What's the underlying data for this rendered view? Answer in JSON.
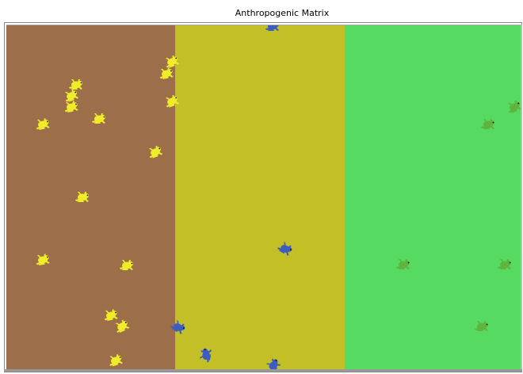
{
  "view": {
    "title": "Anthropogenic Matrix"
  },
  "patches": [
    {
      "name": "brown-habitat",
      "color": "#9c6e4a"
    },
    {
      "name": "olive-matrix",
      "color": "#c3bf27"
    },
    {
      "name": "green-habitat",
      "color": "#57da62"
    }
  ],
  "agents": {
    "shape-icon": "frog-icon",
    "colors": {
      "yellow": "#f0ec2a",
      "blue": "#3c5cbf",
      "green": "#5eb43c"
    },
    "counts": {
      "yellow": 15,
      "blue": 5,
      "green": 5
    }
  }
}
